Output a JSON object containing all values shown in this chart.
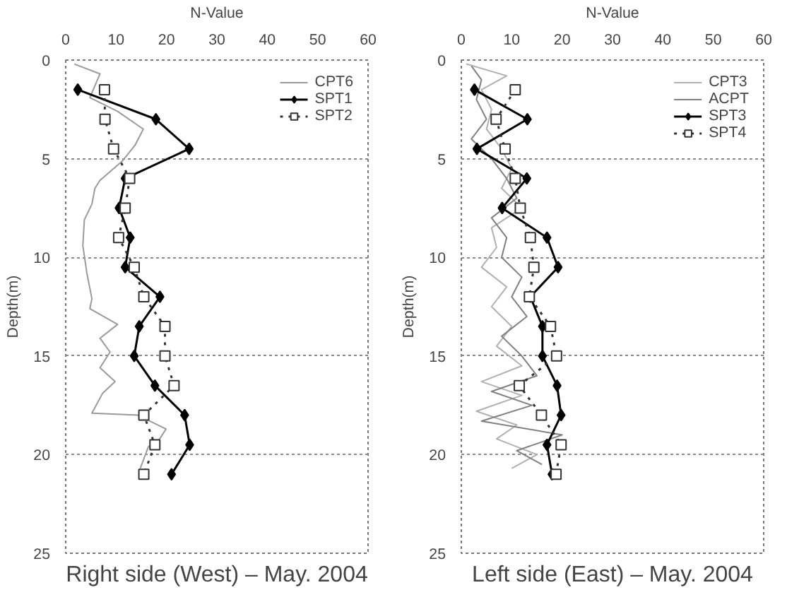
{
  "chart_data": [
    {
      "type": "line",
      "title": "Right side (West) – May. 2004",
      "xlabel": "N-Value",
      "ylabel": "Depth(m)",
      "xlim": [
        0,
        60
      ],
      "ylim": [
        25,
        0
      ],
      "xticks": [
        0,
        10,
        20,
        30,
        40,
        50,
        60
      ],
      "yticks": [
        0,
        5,
        10,
        15,
        20,
        25
      ],
      "grid": "y",
      "legend": "top right",
      "series": [
        {
          "name": "CPT6",
          "color": "#9a9a9a",
          "marker": "none",
          "line_style": "solid",
          "x": [
            1.7,
            6.8,
            4.8,
            10.3,
            15.4,
            13.8,
            11.3,
            6.8,
            5.8,
            5.2,
            3.7,
            3.4,
            4.2,
            5.2,
            4.8,
            10.3,
            6.8,
            8.8,
            6.8,
            9.8,
            7.3,
            5.2,
            14.3,
            19.9,
            18.4,
            16.4,
            14.8
          ],
          "values": [
            0.2,
            0.7,
            1.9,
            2.6,
            3.5,
            4.3,
            5.1,
            6.1,
            6.5,
            7.3,
            8.1,
            9.4,
            10.8,
            12.1,
            12.6,
            13.4,
            14.1,
            14.8,
            15.6,
            16.3,
            16.9,
            17.9,
            18,
            18.7,
            19.3,
            19.6,
            20.7
          ]
        },
        {
          "name": "SPT1",
          "color": "#000000",
          "marker": "diamond",
          "line_style": "solid",
          "x": [
            2.4,
            17.9,
            24.5,
            11.8,
            10.6,
            12.8,
            11.8,
            18.7,
            14.6,
            13.6,
            17.7,
            23.6,
            24.6,
            21
          ],
          "values": [
            1.5,
            3,
            4.5,
            6,
            7.5,
            9,
            10.5,
            12,
            13.5,
            15,
            16.5,
            18,
            19.5,
            21
          ]
        },
        {
          "name": "SPT2",
          "color": "#333333",
          "marker": "square",
          "line_style": "dotted",
          "x": [
            7.7,
            7.8,
            9.5,
            12.7,
            11.8,
            10.5,
            13.6,
            15.5,
            19.7,
            19.7,
            21.5,
            15.5,
            17.7,
            15.5
          ],
          "values": [
            1.5,
            3,
            4.5,
            6,
            7.5,
            9,
            10.5,
            12,
            13.5,
            15,
            16.5,
            18,
            19.5,
            21
          ]
        }
      ]
    },
    {
      "type": "line",
      "title": "Left side (East) – May. 2004",
      "xlabel": "N-Value",
      "ylabel": "Depth(m)",
      "xlim": [
        0,
        60
      ],
      "ylim": [
        25,
        0
      ],
      "xticks": [
        0,
        10,
        20,
        30,
        40,
        50,
        60
      ],
      "yticks": [
        0,
        5,
        10,
        15,
        20,
        25
      ],
      "grid": "y",
      "legend": "top right",
      "series": [
        {
          "name": "CPT3",
          "color": "#b0b0b0",
          "marker": "none",
          "line_style": "solid",
          "x": [
            1,
            9,
            4,
            6,
            5,
            8,
            10,
            8,
            12,
            6,
            7,
            4,
            9,
            6,
            10,
            7,
            12,
            4,
            12,
            3,
            11,
            7,
            15,
            10
          ],
          "values": [
            0.2,
            0.8,
            1.5,
            2.5,
            3.5,
            4.5,
            5.5,
            6.5,
            7.5,
            8.5,
            9.5,
            10.5,
            11.5,
            12.5,
            13.5,
            14.5,
            15.5,
            16.3,
            17,
            17.8,
            18.5,
            19.2,
            20,
            20.7
          ]
        },
        {
          "name": "ACPT",
          "color": "#808080",
          "marker": "none",
          "line_style": "solid",
          "x": [
            2,
            4,
            3,
            5,
            2,
            6,
            9,
            11,
            6,
            9,
            8,
            12,
            10,
            13,
            8,
            12,
            15,
            6,
            14,
            4,
            20,
            11,
            16
          ],
          "values": [
            0.3,
            1,
            2,
            3,
            4,
            5,
            6,
            7,
            8,
            9,
            10,
            11,
            12,
            13,
            14,
            15,
            16,
            16.8,
            17.5,
            18.3,
            19,
            19.8,
            20.5
          ]
        },
        {
          "name": "SPT3",
          "color": "#000000",
          "marker": "diamond",
          "line_style": "solid",
          "x": [
            2.6,
            13.1,
            3.1,
            13,
            8.1,
            17,
            19.2,
            13.7,
            16.1,
            16.1,
            19,
            19.8,
            17,
            18
          ],
          "values": [
            1.5,
            3,
            4.5,
            6,
            7.5,
            9,
            10.5,
            12,
            13.5,
            15,
            16.5,
            18,
            19.5,
            21
          ]
        },
        {
          "name": "SPT4",
          "color": "#333333",
          "marker": "square",
          "line_style": "dotted",
          "x": [
            10.7,
            6.9,
            8.7,
            10.7,
            11.7,
            13.7,
            14.4,
            13.5,
            17.7,
            18.9,
            11.5,
            15.9,
            19.8,
            18.8
          ],
          "values": [
            1.5,
            3,
            4.5,
            6,
            7.5,
            9,
            10.5,
            12,
            13.5,
            15,
            16.5,
            18,
            19.5,
            21
          ]
        }
      ]
    }
  ]
}
